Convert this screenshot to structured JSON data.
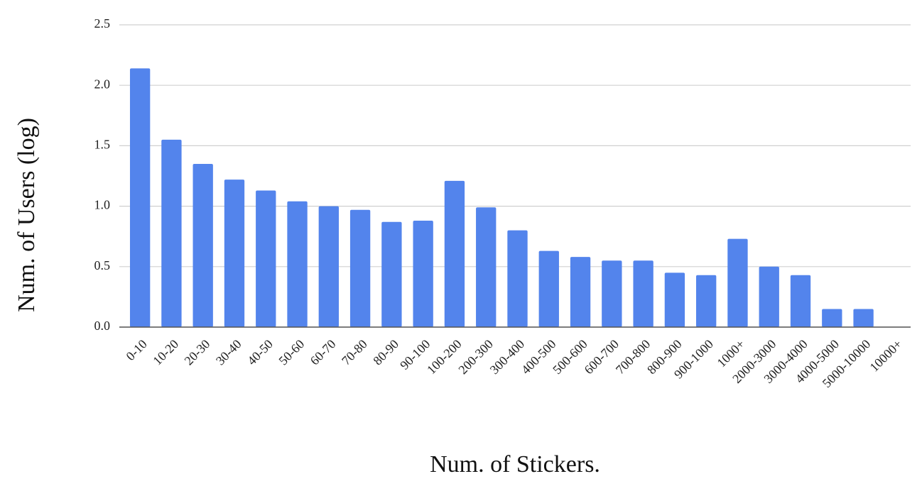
{
  "chart_data": {
    "type": "bar",
    "x_label": "Num. of Stickers.",
    "y_label": "Num. of Users (log)",
    "categories": [
      "0-10",
      "10-20",
      "20-30",
      "30-40",
      "40-50",
      "50-60",
      "60-70",
      "70-80",
      "80-90",
      "90-100",
      "100-200",
      "200-300",
      "300-400",
      "400-500",
      "500-600",
      "600-700",
      "700-800",
      "800-900",
      "900-1000",
      "1000+",
      "2000-3000",
      "3000-4000",
      "4000-5000",
      "5000-10000",
      "10000+"
    ],
    "values": [
      2.14,
      1.55,
      1.35,
      1.22,
      1.13,
      1.04,
      1.0,
      0.97,
      0.87,
      0.88,
      1.21,
      0.99,
      0.8,
      0.63,
      0.58,
      0.55,
      0.55,
      0.45,
      0.43,
      0.73,
      0.5,
      0.43,
      0.15,
      0.15,
      0
    ],
    "color": "#5384ec",
    "ylim": [
      0,
      2.5
    ],
    "yticks": [
      {
        "value": 0,
        "label": "0.0"
      },
      0.5,
      {
        "value": 1,
        "label": "1.0"
      },
      1.5,
      {
        "value": 2,
        "label": "2.0"
      },
      2.5
    ],
    "grid": true
  }
}
